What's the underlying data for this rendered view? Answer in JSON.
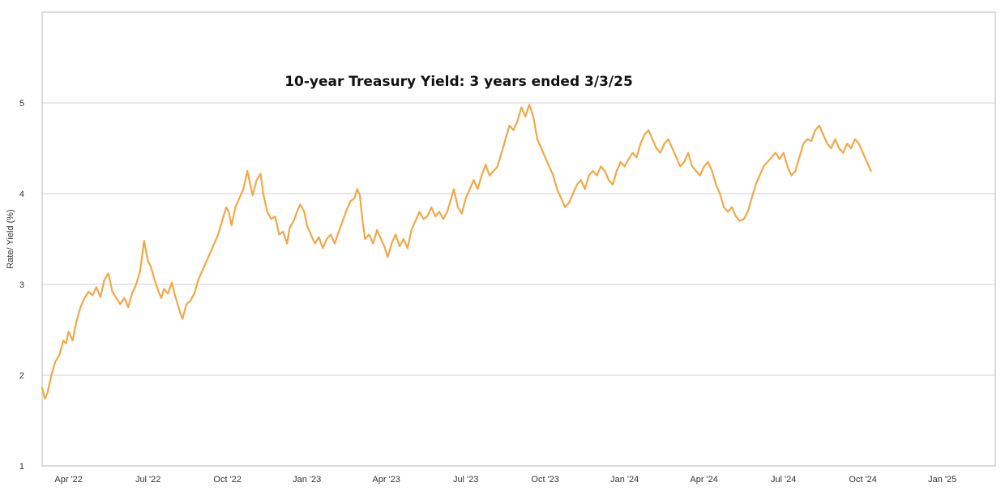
{
  "chart_data": {
    "type": "line",
    "title": "10-year Treasury Yield:  3 years ended 3/3/25",
    "ylabel": "Rate/ Yield (%)",
    "xlabel": "",
    "ylim": [
      1,
      6
    ],
    "yticks": [
      1,
      2,
      3,
      4,
      5
    ],
    "xlim": [
      0,
      36
    ],
    "grid": "horizontal",
    "line_color": "#F0A848",
    "x_unit": "months since Mar 3, 2022",
    "x_ticks": [
      {
        "label": "Apr '22",
        "x": 1.0
      },
      {
        "label": "Jul '22",
        "x": 4.0
      },
      {
        "label": "Oct '22",
        "x": 7.0
      },
      {
        "label": "Jan '23",
        "x": 10.0
      },
      {
        "label": "Apr '23",
        "x": 13.0
      },
      {
        "label": "Jul '23",
        "x": 16.0
      },
      {
        "label": "Oct '23",
        "x": 19.0
      },
      {
        "label": "Jan '24",
        "x": 22.0
      },
      {
        "label": "Apr '24",
        "x": 25.0
      },
      {
        "label": "Jul '24",
        "x": 28.0
      },
      {
        "label": "Oct '24",
        "x": 31.0
      },
      {
        "label": "Jan '25",
        "x": 34.0
      }
    ],
    "series": [
      {
        "name": "10-year Treasury Yield",
        "points": [
          [
            0.0,
            1.86
          ],
          [
            0.1,
            1.74
          ],
          [
            0.2,
            1.8
          ],
          [
            0.35,
            2.0
          ],
          [
            0.5,
            2.15
          ],
          [
            0.65,
            2.22
          ],
          [
            0.8,
            2.38
          ],
          [
            0.9,
            2.35
          ],
          [
            1.0,
            2.48
          ],
          [
            1.15,
            2.38
          ],
          [
            1.3,
            2.6
          ],
          [
            1.45,
            2.75
          ],
          [
            1.6,
            2.85
          ],
          [
            1.75,
            2.92
          ],
          [
            1.9,
            2.88
          ],
          [
            2.05,
            2.97
          ],
          [
            2.2,
            2.86
          ],
          [
            2.35,
            3.05
          ],
          [
            2.5,
            3.12
          ],
          [
            2.65,
            2.92
          ],
          [
            2.8,
            2.85
          ],
          [
            2.95,
            2.78
          ],
          [
            3.1,
            2.85
          ],
          [
            3.25,
            2.75
          ],
          [
            3.4,
            2.9
          ],
          [
            3.55,
            3.0
          ],
          [
            3.7,
            3.15
          ],
          [
            3.85,
            3.48
          ],
          [
            4.0,
            3.25
          ],
          [
            4.1,
            3.2
          ],
          [
            4.25,
            3.05
          ],
          [
            4.4,
            2.92
          ],
          [
            4.5,
            2.85
          ],
          [
            4.6,
            2.95
          ],
          [
            4.75,
            2.9
          ],
          [
            4.9,
            3.02
          ],
          [
            5.0,
            2.9
          ],
          [
            5.1,
            2.8
          ],
          [
            5.2,
            2.7
          ],
          [
            5.3,
            2.62
          ],
          [
            5.45,
            2.78
          ],
          [
            5.6,
            2.82
          ],
          [
            5.75,
            2.9
          ],
          [
            5.9,
            3.05
          ],
          [
            6.05,
            3.15
          ],
          [
            6.2,
            3.25
          ],
          [
            6.35,
            3.35
          ],
          [
            6.5,
            3.45
          ],
          [
            6.65,
            3.55
          ],
          [
            6.8,
            3.7
          ],
          [
            6.95,
            3.85
          ],
          [
            7.05,
            3.8
          ],
          [
            7.15,
            3.65
          ],
          [
            7.3,
            3.85
          ],
          [
            7.45,
            3.95
          ],
          [
            7.6,
            4.05
          ],
          [
            7.75,
            4.25
          ],
          [
            7.85,
            4.12
          ],
          [
            7.95,
            3.98
          ],
          [
            8.1,
            4.15
          ],
          [
            8.25,
            4.22
          ],
          [
            8.35,
            4.0
          ],
          [
            8.5,
            3.8
          ],
          [
            8.65,
            3.72
          ],
          [
            8.8,
            3.75
          ],
          [
            8.95,
            3.55
          ],
          [
            9.1,
            3.58
          ],
          [
            9.25,
            3.45
          ],
          [
            9.35,
            3.62
          ],
          [
            9.5,
            3.7
          ],
          [
            9.65,
            3.82
          ],
          [
            9.75,
            3.88
          ],
          [
            9.9,
            3.8
          ],
          [
            10.0,
            3.65
          ],
          [
            10.15,
            3.55
          ],
          [
            10.3,
            3.45
          ],
          [
            10.45,
            3.52
          ],
          [
            10.6,
            3.4
          ],
          [
            10.75,
            3.5
          ],
          [
            10.9,
            3.55
          ],
          [
            11.05,
            3.45
          ],
          [
            11.2,
            3.58
          ],
          [
            11.35,
            3.7
          ],
          [
            11.5,
            3.82
          ],
          [
            11.65,
            3.92
          ],
          [
            11.8,
            3.95
          ],
          [
            11.9,
            4.05
          ],
          [
            12.0,
            3.98
          ],
          [
            12.1,
            3.7
          ],
          [
            12.2,
            3.5
          ],
          [
            12.35,
            3.55
          ],
          [
            12.5,
            3.45
          ],
          [
            12.65,
            3.6
          ],
          [
            12.8,
            3.5
          ],
          [
            12.95,
            3.4
          ],
          [
            13.05,
            3.3
          ],
          [
            13.2,
            3.45
          ],
          [
            13.35,
            3.55
          ],
          [
            13.5,
            3.42
          ],
          [
            13.65,
            3.5
          ],
          [
            13.8,
            3.4
          ],
          [
            13.95,
            3.6
          ],
          [
            14.1,
            3.7
          ],
          [
            14.25,
            3.8
          ],
          [
            14.4,
            3.72
          ],
          [
            14.55,
            3.75
          ],
          [
            14.7,
            3.85
          ],
          [
            14.85,
            3.75
          ],
          [
            15.0,
            3.8
          ],
          [
            15.15,
            3.72
          ],
          [
            15.3,
            3.8
          ],
          [
            15.45,
            3.95
          ],
          [
            15.55,
            4.05
          ],
          [
            15.7,
            3.85
          ],
          [
            15.85,
            3.78
          ],
          [
            16.0,
            3.95
          ],
          [
            16.15,
            4.05
          ],
          [
            16.3,
            4.15
          ],
          [
            16.45,
            4.05
          ],
          [
            16.6,
            4.2
          ],
          [
            16.75,
            4.32
          ],
          [
            16.9,
            4.2
          ],
          [
            17.05,
            4.25
          ],
          [
            17.2,
            4.3
          ],
          [
            17.35,
            4.45
          ],
          [
            17.5,
            4.6
          ],
          [
            17.65,
            4.75
          ],
          [
            17.8,
            4.7
          ],
          [
            17.95,
            4.8
          ],
          [
            18.1,
            4.95
          ],
          [
            18.25,
            4.85
          ],
          [
            18.4,
            4.98
          ],
          [
            18.55,
            4.85
          ],
          [
            18.7,
            4.6
          ],
          [
            18.85,
            4.5
          ],
          [
            19.0,
            4.4
          ],
          [
            19.15,
            4.3
          ],
          [
            19.3,
            4.2
          ],
          [
            19.45,
            4.05
          ],
          [
            19.6,
            3.95
          ],
          [
            19.75,
            3.85
          ],
          [
            19.9,
            3.9
          ],
          [
            20.05,
            4.0
          ],
          [
            20.2,
            4.1
          ],
          [
            20.35,
            4.15
          ],
          [
            20.5,
            4.05
          ],
          [
            20.65,
            4.2
          ],
          [
            20.8,
            4.25
          ],
          [
            20.95,
            4.2
          ],
          [
            21.1,
            4.3
          ],
          [
            21.25,
            4.25
          ],
          [
            21.4,
            4.15
          ],
          [
            21.55,
            4.1
          ],
          [
            21.7,
            4.25
          ],
          [
            21.85,
            4.35
          ],
          [
            22.0,
            4.3
          ],
          [
            22.15,
            4.38
          ],
          [
            22.3,
            4.45
          ],
          [
            22.45,
            4.4
          ],
          [
            22.6,
            4.55
          ],
          [
            22.75,
            4.65
          ],
          [
            22.9,
            4.7
          ],
          [
            23.05,
            4.6
          ],
          [
            23.2,
            4.5
          ],
          [
            23.35,
            4.45
          ],
          [
            23.5,
            4.55
          ],
          [
            23.65,
            4.6
          ],
          [
            23.8,
            4.5
          ],
          [
            23.95,
            4.4
          ],
          [
            24.1,
            4.3
          ],
          [
            24.25,
            4.35
          ],
          [
            24.4,
            4.45
          ],
          [
            24.55,
            4.3
          ],
          [
            24.7,
            4.25
          ],
          [
            24.85,
            4.2
          ],
          [
            25.0,
            4.3
          ],
          [
            25.15,
            4.35
          ],
          [
            25.3,
            4.25
          ],
          [
            25.45,
            4.1
          ],
          [
            25.6,
            4.0
          ],
          [
            25.75,
            3.85
          ],
          [
            25.9,
            3.8
          ],
          [
            26.05,
            3.85
          ],
          [
            26.2,
            3.75
          ],
          [
            26.35,
            3.7
          ],
          [
            26.5,
            3.72
          ],
          [
            26.65,
            3.8
          ],
          [
            26.8,
            3.95
          ],
          [
            26.95,
            4.1
          ],
          [
            27.1,
            4.2
          ],
          [
            27.25,
            4.3
          ],
          [
            27.4,
            4.35
          ],
          [
            27.55,
            4.4
          ],
          [
            27.7,
            4.45
          ],
          [
            27.85,
            4.38
          ],
          [
            28.0,
            4.45
          ],
          [
            28.15,
            4.3
          ],
          [
            28.3,
            4.2
          ],
          [
            28.45,
            4.25
          ],
          [
            28.6,
            4.4
          ],
          [
            28.75,
            4.55
          ],
          [
            28.9,
            4.6
          ],
          [
            29.05,
            4.58
          ],
          [
            29.2,
            4.7
          ],
          [
            29.35,
            4.75
          ],
          [
            29.5,
            4.65
          ],
          [
            29.65,
            4.55
          ],
          [
            29.8,
            4.5
          ],
          [
            29.95,
            4.6
          ],
          [
            30.1,
            4.5
          ],
          [
            30.25,
            4.45
          ],
          [
            30.4,
            4.55
          ],
          [
            30.55,
            4.5
          ],
          [
            30.7,
            4.6
          ],
          [
            30.85,
            4.55
          ],
          [
            31.0,
            4.45
          ],
          [
            31.15,
            4.35
          ],
          [
            31.3,
            4.25
          ]
        ]
      }
    ]
  }
}
